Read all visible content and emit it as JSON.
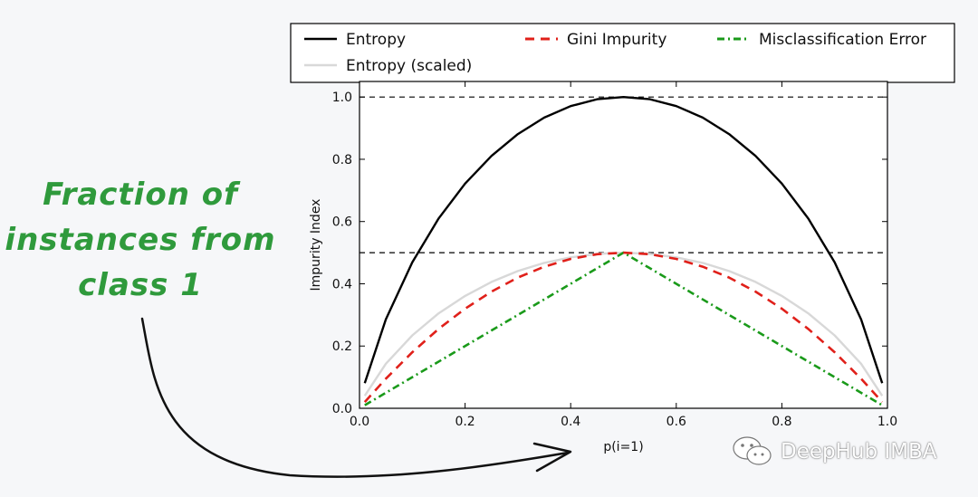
{
  "annotation": {
    "lines": [
      "Fraction of",
      "instances from",
      "class 1"
    ],
    "color": "#2f9a3c"
  },
  "watermark": {
    "text": "DeepHub IMBA",
    "icon": "wechat-icon"
  },
  "chart_data": {
    "type": "line",
    "xlabel": "p(i=1)",
    "ylabel": "Impurity Index",
    "xlim": [
      0.0,
      1.0
    ],
    "ylim": [
      0.0,
      1.05
    ],
    "xticks": [
      "0.0",
      "0.2",
      "0.4",
      "0.6",
      "0.8",
      "1.0"
    ],
    "yticks": [
      "0.0",
      "0.2",
      "0.4",
      "0.6",
      "0.8",
      "1.0"
    ],
    "grid": false,
    "legend_position": "top, above plot",
    "reference_lines": [
      {
        "y": 1.0,
        "style": "dashed",
        "color": "#000000"
      },
      {
        "y": 0.5,
        "style": "dashed",
        "color": "#000000"
      }
    ],
    "series": [
      {
        "name": "Entropy",
        "color": "#000000",
        "style": "solid",
        "x": [
          0.01,
          0.05,
          0.1,
          0.15,
          0.2,
          0.25,
          0.3,
          0.35,
          0.4,
          0.45,
          0.5,
          0.55,
          0.6,
          0.65,
          0.7,
          0.75,
          0.8,
          0.85,
          0.9,
          0.95,
          0.99
        ],
        "y": [
          0.081,
          0.286,
          0.469,
          0.61,
          0.722,
          0.811,
          0.881,
          0.934,
          0.971,
          0.993,
          1.0,
          0.993,
          0.971,
          0.934,
          0.881,
          0.811,
          0.722,
          0.61,
          0.469,
          0.286,
          0.081
        ]
      },
      {
        "name": "Entropy (scaled)",
        "color": "#d8d8d8",
        "style": "solid",
        "x": [
          0.01,
          0.05,
          0.1,
          0.15,
          0.2,
          0.25,
          0.3,
          0.35,
          0.4,
          0.45,
          0.5,
          0.55,
          0.6,
          0.65,
          0.7,
          0.75,
          0.8,
          0.85,
          0.9,
          0.95,
          0.99
        ],
        "y": [
          0.04,
          0.143,
          0.234,
          0.305,
          0.361,
          0.406,
          0.441,
          0.467,
          0.485,
          0.496,
          0.5,
          0.496,
          0.485,
          0.467,
          0.441,
          0.406,
          0.361,
          0.305,
          0.234,
          0.143,
          0.04
        ]
      },
      {
        "name": "Gini Impurity",
        "color": "#e0201a",
        "style": "dashed",
        "x": [
          0.01,
          0.05,
          0.1,
          0.15,
          0.2,
          0.25,
          0.3,
          0.35,
          0.4,
          0.45,
          0.5,
          0.55,
          0.6,
          0.65,
          0.7,
          0.75,
          0.8,
          0.85,
          0.9,
          0.95,
          0.99
        ],
        "y": [
          0.02,
          0.095,
          0.18,
          0.255,
          0.32,
          0.375,
          0.42,
          0.455,
          0.48,
          0.495,
          0.5,
          0.495,
          0.48,
          0.455,
          0.42,
          0.375,
          0.32,
          0.255,
          0.18,
          0.095,
          0.02
        ]
      },
      {
        "name": "Misclassification Error",
        "color": "#1a9a1a",
        "style": "dashdot",
        "x": [
          0.01,
          0.5,
          0.99
        ],
        "y": [
          0.01,
          0.5,
          0.01
        ]
      }
    ]
  }
}
